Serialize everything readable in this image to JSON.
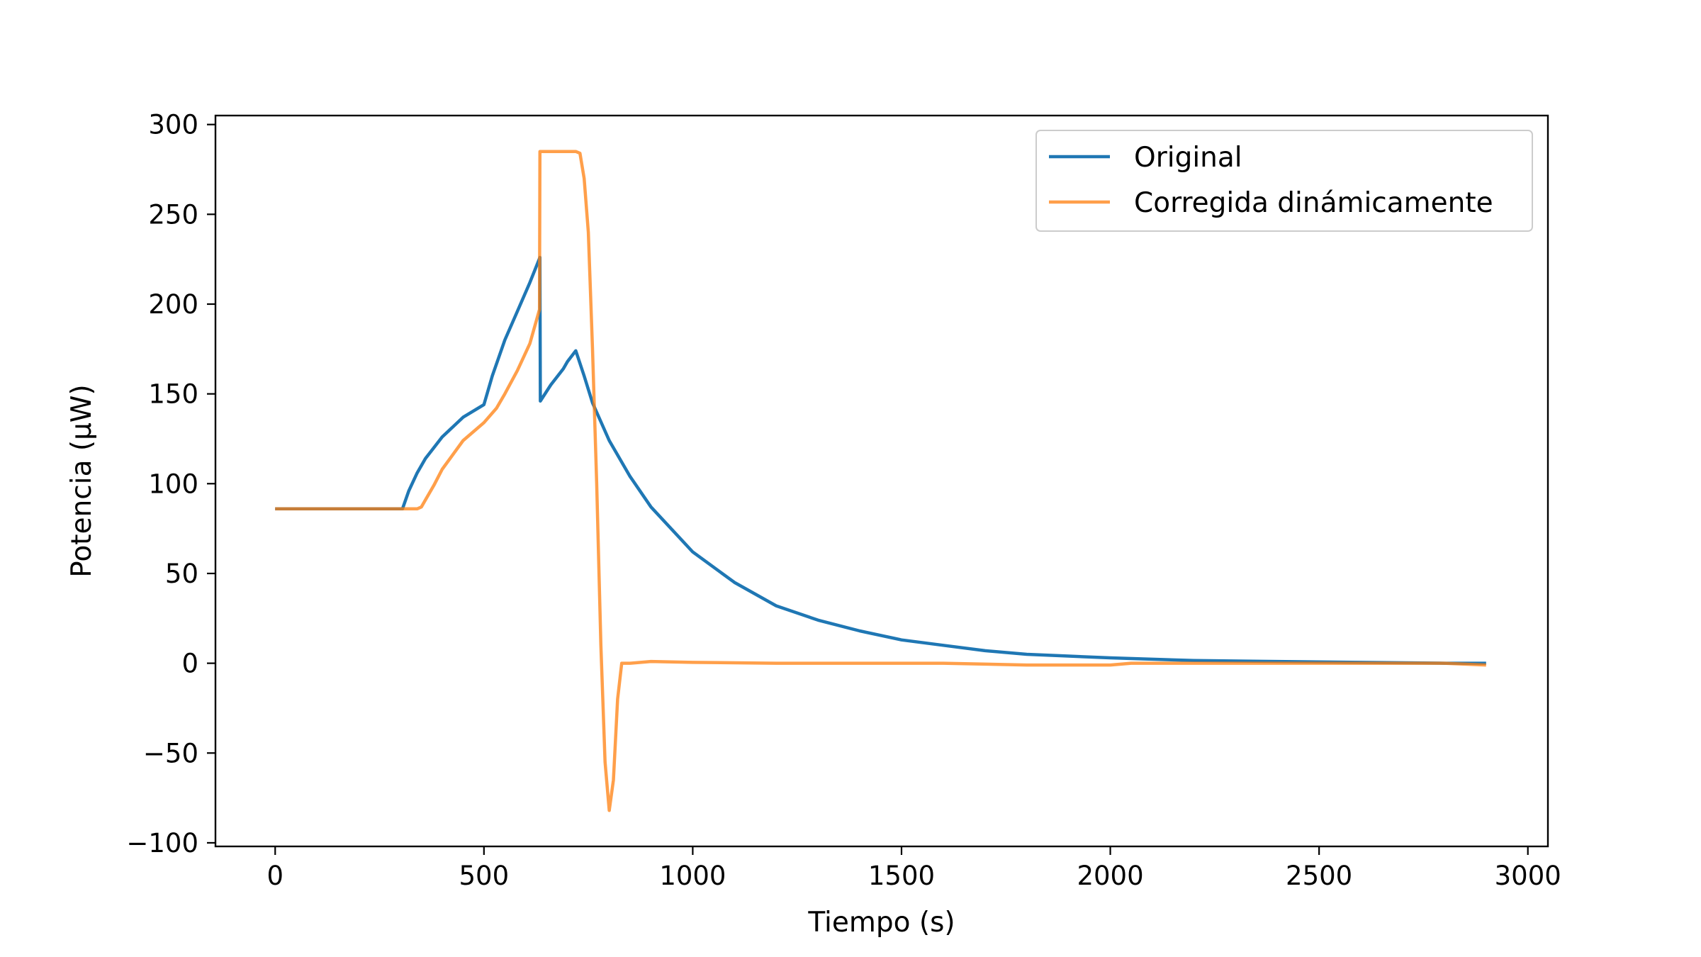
{
  "chart_data": {
    "type": "line",
    "xlabel": "Tiempo (s)",
    "ylabel": "Potencia (μW)",
    "xlim": [
      -143,
      3048
    ],
    "ylim": [
      -102,
      305
    ],
    "xticks": [
      0,
      500,
      1000,
      1500,
      2000,
      2500,
      3000
    ],
    "xtick_labels": [
      "0",
      "500",
      "1000",
      "1500",
      "2000",
      "2500",
      "3000"
    ],
    "yticks": [
      -100,
      -50,
      0,
      50,
      100,
      150,
      200,
      250,
      300
    ],
    "ytick_labels": [
      "−100",
      "−50",
      "0",
      "50",
      "100",
      "150",
      "200",
      "250",
      "300"
    ],
    "grid": false,
    "legend_position": "top-right",
    "series": [
      {
        "name": "Original",
        "color": "#1f77b4",
        "x": [
          0,
          100,
          200,
          305,
          320,
          340,
          360,
          400,
          450,
          500,
          520,
          550,
          580,
          610,
          634,
          635,
          660,
          690,
          700,
          720,
          740,
          760,
          800,
          850,
          900,
          1000,
          1100,
          1200,
          1300,
          1400,
          1500,
          1600,
          1700,
          1800,
          1900,
          2000,
          2200,
          2400,
          2600,
          2800,
          2900
        ],
        "y": [
          86,
          86,
          86,
          86,
          96,
          106,
          114,
          126,
          137,
          144,
          160,
          180,
          196,
          212,
          226,
          146,
          155,
          164,
          168,
          174,
          160,
          145,
          124,
          104,
          87,
          62,
          45,
          32,
          24,
          18,
          13,
          10,
          7,
          5,
          4,
          3,
          1.5,
          1,
          0.5,
          0,
          0
        ]
      },
      {
        "name": "Corregida dinámicamente",
        "color": "#ff7f0e",
        "x": [
          0,
          100,
          200,
          300,
          320,
          340,
          350,
          360,
          380,
          400,
          450,
          500,
          530,
          550,
          580,
          610,
          633,
          634,
          650,
          680,
          700,
          720,
          730,
          740,
          750,
          760,
          770,
          780,
          790,
          800,
          810,
          820,
          830,
          850,
          900,
          1000,
          1200,
          1400,
          1600,
          1800,
          2000,
          2050,
          2200,
          2400,
          2600,
          2800,
          2900
        ],
        "y": [
          86,
          86,
          86,
          86,
          86,
          86,
          87,
          91,
          99,
          108,
          124,
          134,
          142,
          150,
          163,
          178,
          197,
          285,
          285,
          285,
          285,
          285,
          284,
          270,
          240,
          175,
          100,
          10,
          -55,
          -82,
          -65,
          -20,
          0,
          0,
          1,
          0.5,
          0,
          0,
          0,
          -1,
          -1,
          0,
          0,
          0,
          0,
          0,
          -1
        ]
      }
    ]
  }
}
